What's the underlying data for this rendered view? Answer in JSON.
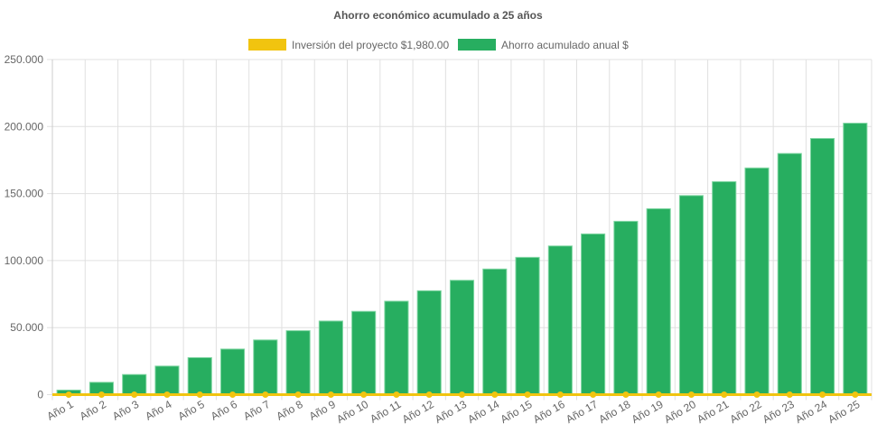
{
  "chart_data": {
    "type": "bar",
    "title": "Ahorro económico acumulado a 25 años",
    "legend_position": "top",
    "grid": true,
    "ylim": [
      0,
      250000
    ],
    "y_ticks": [
      "0",
      "50.000",
      "100.000",
      "150.000",
      "200.000",
      "250.000"
    ],
    "y_tick_values": [
      0,
      50000,
      100000,
      150000,
      200000,
      250000
    ],
    "categories": [
      "Año 1",
      "Año 2",
      "Año 3",
      "Año 4",
      "Año 5",
      "Año 6",
      "Año 7",
      "Año 8",
      "Año 9",
      "Año 10",
      "Año 11",
      "Año 12",
      "Año 13",
      "Año 14",
      "Año 15",
      "Año 16",
      "Año 17",
      "Año 18",
      "Año 19",
      "Año 20",
      "Año 21",
      "Año 22",
      "Año 23",
      "Año 24",
      "Año 25"
    ],
    "series": [
      {
        "name": "Inversión del proyecto $1,980.00",
        "type": "line",
        "color": "#f1c40f",
        "values": [
          0,
          0,
          0,
          0,
          0,
          0,
          0,
          0,
          0,
          0,
          0,
          0,
          0,
          0,
          0,
          0,
          0,
          0,
          0,
          0,
          0,
          0,
          0,
          0,
          0
        ]
      },
      {
        "name": "Ahorro acumulado anual $",
        "type": "bar",
        "color": "#27ae60",
        "values": [
          3400,
          9200,
          15000,
          21300,
          27600,
          34000,
          40800,
          47700,
          54900,
          62100,
          69700,
          77500,
          85300,
          93700,
          102400,
          110900,
          119900,
          129300,
          138700,
          148500,
          158900,
          169100,
          179900,
          191100,
          202500
        ]
      }
    ]
  }
}
